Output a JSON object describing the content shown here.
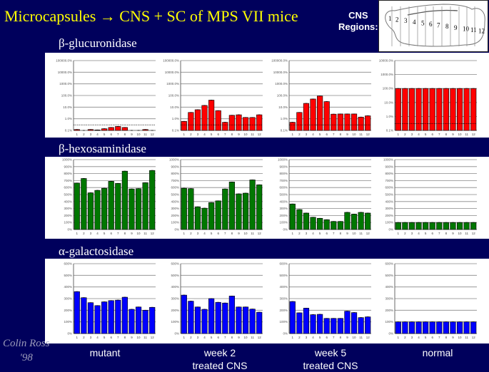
{
  "title": "Microcapsules → CNS + SC of MPS VII mice",
  "cns_regions_label": [
    "CNS",
    "Regions:"
  ],
  "brain_region_numbers": [
    "1",
    "2",
    "3",
    "4",
    "5",
    "6",
    "7",
    "8",
    "9",
    "10",
    "11",
    "12"
  ],
  "conditions": [
    {
      "line1": "mutant",
      "line2": ""
    },
    {
      "line1": "week 2",
      "line2": "treated CNS"
    },
    {
      "line1": "week 5",
      "line2": "treated CNS"
    },
    {
      "line1": "normal",
      "line2": ""
    }
  ],
  "signature": [
    "Colin Ross",
    "'98"
  ],
  "chart_data": [
    {
      "type": "bar",
      "title": "β-glucuronidase",
      "condition": "mutant",
      "scale": "log",
      "ylim": [
        0.1,
        100000
      ],
      "color": "#ff0000",
      "reference_line": 0.3,
      "categories": [
        "1",
        "2",
        "3",
        "4",
        "5",
        "6",
        "7",
        "8",
        "9",
        "10",
        "11",
        "12"
      ],
      "yticks": [
        "0.1%",
        "1.0%",
        "10.0%",
        "100.0%",
        "1000.0%",
        "10000.0%",
        "100000.0%"
      ],
      "values": [
        0.12,
        0.1,
        0.12,
        0.11,
        0.14,
        0.18,
        0.22,
        0.18,
        0.1,
        0.1,
        0.12,
        0.1
      ]
    },
    {
      "type": "bar",
      "title": "β-glucuronidase",
      "condition": "week 2 treated CNS",
      "scale": "log",
      "ylim": [
        0.1,
        100000
      ],
      "color": "#ff0000",
      "reference_line": 0.3,
      "categories": [
        "1",
        "2",
        "3",
        "4",
        "5",
        "6",
        "7",
        "8",
        "9",
        "10",
        "11",
        "12"
      ],
      "yticks": [
        "0.1%",
        "1.0%",
        "10.0%",
        "100.0%",
        "1000.0%",
        "10000.0%",
        "100000.0%"
      ],
      "values": [
        0.6,
        3.5,
        6,
        14,
        40,
        5,
        0.5,
        2,
        2.2,
        1.3,
        1.3,
        2.2
      ]
    },
    {
      "type": "bar",
      "title": "β-glucuronidase",
      "condition": "week 5 treated CNS",
      "scale": "log",
      "ylim": [
        0.1,
        100000
      ],
      "color": "#ff0000",
      "reference_line": 0.3,
      "categories": [
        "1",
        "2",
        "3",
        "4",
        "5",
        "6",
        "7",
        "8",
        "9",
        "10",
        "11",
        "12"
      ],
      "yticks": [
        "0.1%",
        "1.0%",
        "10.0%",
        "100.0%",
        "1000.0%",
        "10000.0%",
        "100000.0%"
      ],
      "values": [
        0.5,
        3.5,
        21,
        50,
        90,
        30,
        2.5,
        2.6,
        2.6,
        2.6,
        1.4,
        1.8
      ]
    },
    {
      "type": "bar",
      "title": "β-glucuronidase",
      "condition": "normal",
      "scale": "log",
      "ylim": [
        0.1,
        10000
      ],
      "color": "#ff0000",
      "reference_line": 0.3,
      "categories": [
        "1",
        "2",
        "3",
        "4",
        "5",
        "6",
        "7",
        "8",
        "9",
        "10",
        "11",
        "12"
      ],
      "yticks": [
        "0.1%",
        "1.0%",
        "10.0%",
        "100.0%",
        "1000.0%",
        "10000.0%"
      ],
      "values": [
        100,
        100,
        100,
        100,
        100,
        100,
        100,
        100,
        100,
        100,
        100,
        100
      ]
    },
    {
      "type": "bar",
      "title": "β-hexosaminidase",
      "condition": "mutant",
      "scale": "linear",
      "ylim": [
        0,
        1000
      ],
      "color": "#007700",
      "categories": [
        "1",
        "2",
        "3",
        "4",
        "5",
        "6",
        "7",
        "8",
        "9",
        "10",
        "11",
        "12"
      ],
      "yticks": [
        "0%",
        "100%",
        "200%",
        "300%",
        "400%",
        "500%",
        "600%",
        "700%",
        "800%",
        "900%",
        "1000%"
      ],
      "values": [
        665,
        730,
        525,
        560,
        590,
        690,
        660,
        835,
        580,
        585,
        670,
        845
      ]
    },
    {
      "type": "bar",
      "title": "β-hexosaminidase",
      "condition": "week 2 treated CNS",
      "scale": "linear",
      "ylim": [
        0,
        1000
      ],
      "color": "#007700",
      "categories": [
        "1",
        "2",
        "3",
        "4",
        "5",
        "6",
        "7",
        "8",
        "9",
        "10",
        "11",
        "12"
      ],
      "yticks": [
        "0%",
        "100%",
        "200%",
        "300%",
        "400%",
        "500%",
        "600%",
        "700%",
        "800%",
        "900%",
        "1000%"
      ],
      "values": [
        590,
        585,
        325,
        305,
        385,
        410,
        580,
        680,
        510,
        520,
        710,
        640
      ]
    },
    {
      "type": "bar",
      "title": "β-hexosaminidase",
      "condition": "week 5 treated CNS",
      "scale": "linear",
      "ylim": [
        0,
        1000
      ],
      "color": "#007700",
      "categories": [
        "1",
        "2",
        "3",
        "4",
        "5",
        "6",
        "7",
        "8",
        "9",
        "10",
        "11",
        "12"
      ],
      "yticks": [
        "0%",
        "100%",
        "200%",
        "300%",
        "400%",
        "500%",
        "600%",
        "700%",
        "800%",
        "900%",
        "1000%"
      ],
      "values": [
        365,
        285,
        235,
        175,
        160,
        140,
        115,
        115,
        245,
        220,
        245,
        235
      ]
    },
    {
      "type": "bar",
      "title": "β-hexosaminidase",
      "condition": "normal",
      "scale": "linear",
      "ylim": [
        0,
        1000
      ],
      "color": "#007700",
      "categories": [
        "1",
        "2",
        "3",
        "4",
        "5",
        "6",
        "7",
        "8",
        "9",
        "10",
        "11",
        "12"
      ],
      "yticks": [
        "0%",
        "100%",
        "200%",
        "300%",
        "400%",
        "500%",
        "600%",
        "700%",
        "800%",
        "900%",
        "1000%"
      ],
      "values": [
        100,
        100,
        100,
        100,
        100,
        100,
        100,
        100,
        100,
        100,
        100,
        100
      ]
    },
    {
      "type": "bar",
      "title": "α-galactosidase",
      "condition": "mutant",
      "scale": "linear",
      "ylim": [
        0,
        600
      ],
      "color": "#0000ff",
      "categories": [
        "1",
        "2",
        "3",
        "4",
        "5",
        "6",
        "7",
        "8",
        "9",
        "10",
        "11",
        "12"
      ],
      "yticks": [
        "0%",
        "100%",
        "200%",
        "300%",
        "400%",
        "500%",
        "600%"
      ],
      "values": [
        360,
        308,
        265,
        240,
        272,
        283,
        287,
        312,
        208,
        228,
        200,
        225
      ]
    },
    {
      "type": "bar",
      "title": "α-galactosidase",
      "condition": "week 2 treated CNS",
      "scale": "linear",
      "ylim": [
        0,
        600
      ],
      "color": "#0000ff",
      "categories": [
        "1",
        "2",
        "3",
        "4",
        "5",
        "6",
        "7",
        "8",
        "9",
        "10",
        "11",
        "12"
      ],
      "yticks": [
        "0%",
        "100%",
        "200%",
        "300%",
        "400%",
        "500%",
        "600%"
      ],
      "values": [
        330,
        278,
        228,
        208,
        300,
        268,
        262,
        322,
        228,
        228,
        210,
        183
      ]
    },
    {
      "type": "bar",
      "title": "α-galactosidase",
      "condition": "week 5 treated CNS",
      "scale": "linear",
      "ylim": [
        0,
        600
      ],
      "color": "#0000ff",
      "categories": [
        "1",
        "2",
        "3",
        "4",
        "5",
        "6",
        "7",
        "8",
        "9",
        "10",
        "11",
        "12"
      ],
      "yticks": [
        "0%",
        "100%",
        "200%",
        "300%",
        "400%",
        "500%",
        "600%"
      ],
      "values": [
        275,
        178,
        218,
        162,
        165,
        130,
        130,
        130,
        192,
        180,
        137,
        143
      ]
    },
    {
      "type": "bar",
      "title": "α-galactosidase",
      "condition": "normal",
      "scale": "linear",
      "ylim": [
        0,
        600
      ],
      "color": "#0000ff",
      "categories": [
        "1",
        "2",
        "3",
        "4",
        "5",
        "6",
        "7",
        "8",
        "9",
        "10",
        "11",
        "12"
      ],
      "yticks": [
        "0%",
        "100%",
        "200%",
        "300%",
        "400%",
        "500%",
        "600%"
      ],
      "values": [
        100,
        100,
        100,
        100,
        100,
        100,
        100,
        100,
        100,
        100,
        100,
        100
      ]
    }
  ],
  "sections": [
    "β-glucuronidase",
    "β-hexosaminidase",
    "α-galactosidase"
  ]
}
